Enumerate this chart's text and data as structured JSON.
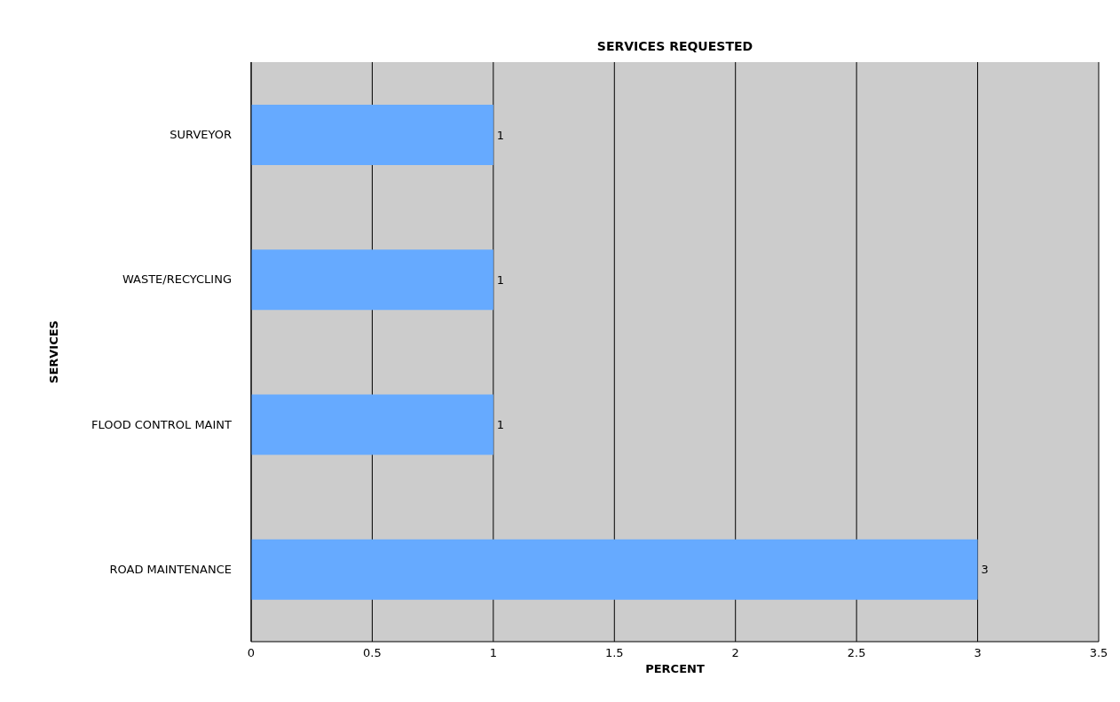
{
  "chart_data": {
    "type": "bar",
    "orientation": "horizontal",
    "title": "SERVICES REQUESTED",
    "xlabel": "PERCENT",
    "ylabel": "SERVICES",
    "categories": [
      "SURVEYOR",
      "WASTE/RECYCLING",
      "FLOOD CONTROL MAINT",
      "ROAD MAINTENANCE"
    ],
    "values": [
      1,
      1,
      1,
      3
    ],
    "color": "#66aaff",
    "data_labels": true,
    "xlim": [
      0,
      3.5
    ],
    "xticks": [
      0,
      0.5,
      1,
      1.5,
      2,
      2.5,
      3,
      3.5
    ],
    "grid": "x",
    "legend": false
  }
}
